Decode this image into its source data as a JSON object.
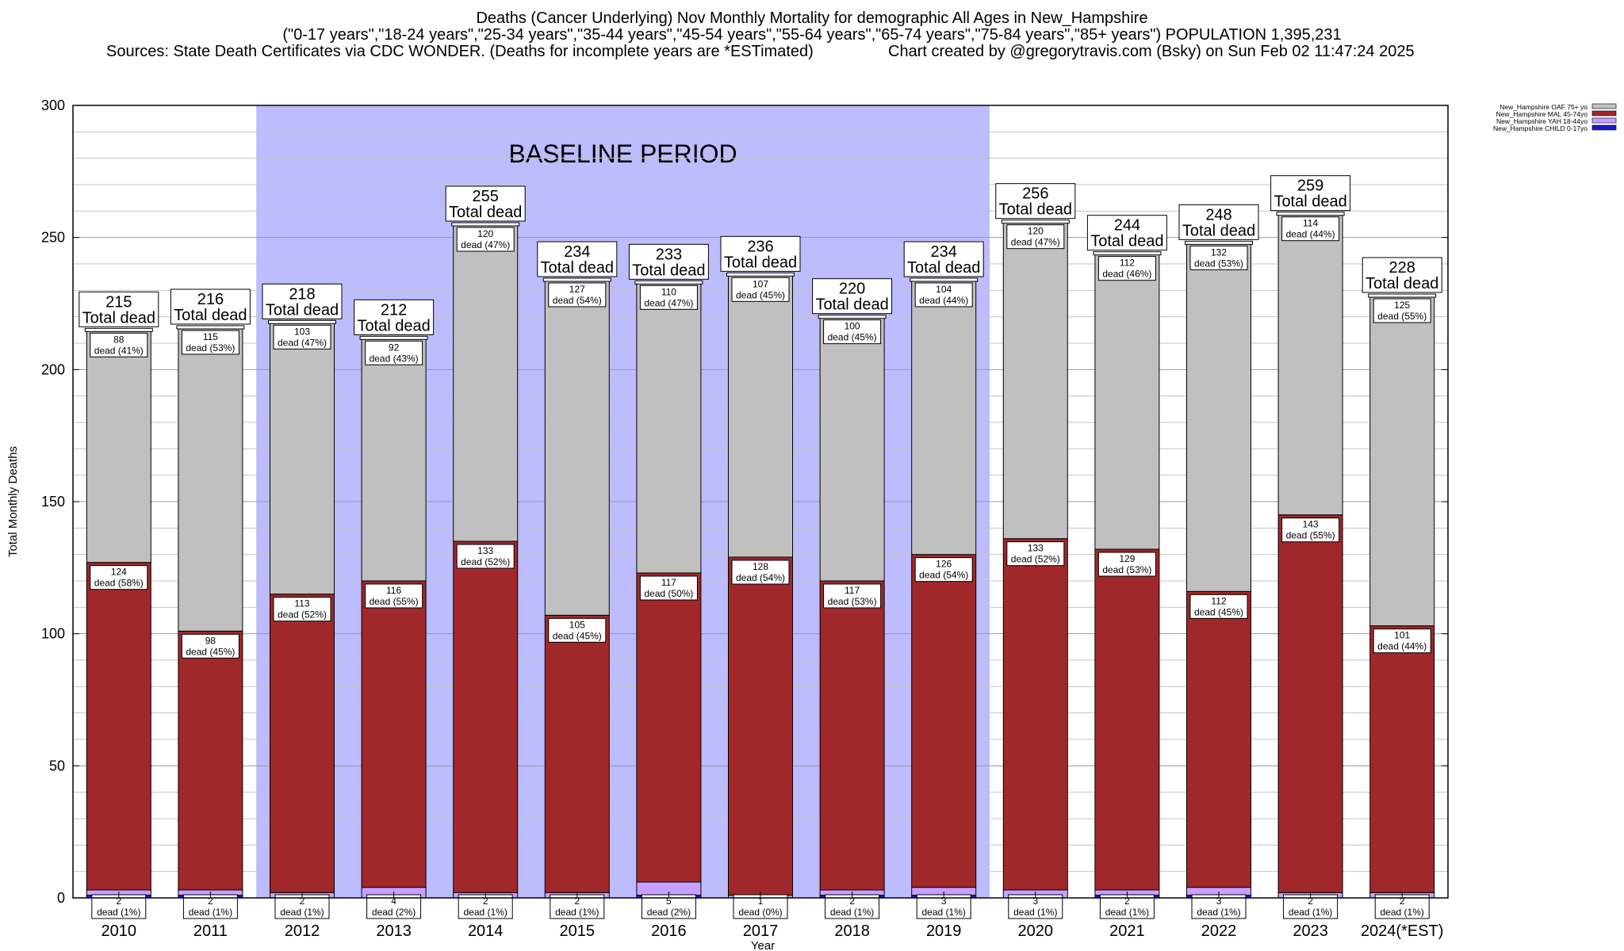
{
  "header": {
    "title": "Deaths (Cancer Underlying) Nov Monthly Mortality for demographic All Ages in New_Hampshire",
    "subtitle": "(\"0-17 years\",\"18-24 years\",\"25-34 years\",\"35-44 years\",\"45-54 years\",\"55-64 years\",\"65-74 years\",\"75-84 years\",\"85+ years\") POPULATION 1,395,231",
    "sources": "Sources: State Death Certificates via CDC WONDER. (Deaths for incomplete years are *ESTimated)",
    "credit": "Chart created by @gregorytravis.com (Bsky) on Sun Feb 02 11:47:24 2025"
  },
  "chart_data": {
    "type": "bar",
    "stacked": true,
    "categories": [
      "2010",
      "2011",
      "2012",
      "2013",
      "2014",
      "2015",
      "2016",
      "2017",
      "2018",
      "2019",
      "2020",
      "2021",
      "2022",
      "2023",
      "2024(*EST)"
    ],
    "xlabel": "Year",
    "ylabel": "Total Monthly Deaths",
    "ylim": [
      0,
      300
    ],
    "yticks": [
      0,
      50,
      100,
      150,
      200,
      250,
      300
    ],
    "grid": true,
    "legend_position": "top-right",
    "baseline": {
      "label": "BASELINE PERIOD",
      "from": "2012",
      "to": "2019",
      "color": "#bcbcff"
    },
    "total_label": "Total dead",
    "dead_word": "dead",
    "series": [
      {
        "name": "New_Hampshire CHILD 0-17yo",
        "color": "#1a1ac8",
        "values": [
          1,
          1,
          0,
          0,
          0,
          0,
          1,
          0,
          1,
          1,
          0,
          1,
          1,
          0,
          0
        ]
      },
      {
        "name": "New_Hampshire YAH 18-44yo",
        "color": "#c8a0ff",
        "values": [
          2,
          2,
          2,
          4,
          2,
          2,
          5,
          1,
          2,
          3,
          3,
          2,
          3,
          2,
          2
        ]
      },
      {
        "name": "New_Hampshire MAL 45-74yo",
        "color": "#a0282a",
        "values": [
          124,
          98,
          113,
          116,
          133,
          105,
          117,
          128,
          117,
          126,
          133,
          129,
          112,
          143,
          101
        ]
      },
      {
        "name": "New_Hampshire OAF 75+ yo",
        "color": "#c0c0c0",
        "values": [
          88,
          115,
          103,
          92,
          120,
          127,
          110,
          107,
          100,
          104,
          120,
          112,
          132,
          114,
          125
        ]
      }
    ],
    "totals": [
      215,
      216,
      218,
      212,
      255,
      234,
      233,
      236,
      220,
      234,
      256,
      244,
      248,
      259,
      228
    ],
    "segment_labels": {
      "New_Hampshire OAF 75+ yo": [
        "88",
        "115",
        "103",
        "92",
        "120",
        "127",
        "110",
        "107",
        "100",
        "104",
        "120",
        "112",
        "132",
        "114",
        "125"
      ],
      "New_Hampshire OAF 75+ yo_pct": [
        "(41%)",
        "(53%)",
        "(47%)",
        "(43%)",
        "(47%)",
        "(54%)",
        "(47%)",
        "(45%)",
        "(45%)",
        "(44%)",
        "(47%)",
        "(46%)",
        "(53%)",
        "(44%)",
        "(55%)"
      ],
      "New_Hampshire MAL 45-74yo": [
        "124",
        "98",
        "113",
        "116",
        "133",
        "105",
        "117",
        "128",
        "117",
        "126",
        "133",
        "129",
        "112",
        "143",
        "101"
      ],
      "New_Hampshire MAL 45-74yo_pct": [
        "(58%)",
        "(45%)",
        "(52%)",
        "(55%)",
        "(52%)",
        "(45%)",
        "(50%)",
        "(54%)",
        "(53%)",
        "(54%)",
        "(52%)",
        "(53%)",
        "(45%)",
        "(55%)",
        "(44%)"
      ],
      "New_Hampshire YAH 18-44yo": [
        "2",
        "2",
        "2",
        "4",
        "2",
        "2",
        "5",
        "1",
        "2",
        "3",
        "3",
        "2",
        "3",
        "2",
        "2"
      ],
      "New_Hampshire YAH 18-44yo_pct": [
        "(1%)",
        "(1%)",
        "(1%)",
        "(2%)",
        "(1%)",
        "(1%)",
        "(2%)",
        "(0%)",
        "(1%)",
        "(1%)",
        "(1%)",
        "(1%)",
        "(1%)",
        "(1%)",
        "(1%)"
      ]
    }
  }
}
